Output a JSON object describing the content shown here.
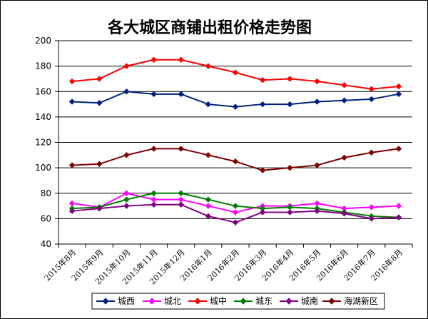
{
  "chart_data": {
    "type": "line",
    "title": "各大城区商铺出租价格走势图",
    "xlabel": "",
    "ylabel": "",
    "ylim": [
      40,
      200
    ],
    "yticks": [
      40,
      60,
      80,
      100,
      120,
      140,
      160,
      180,
      200
    ],
    "grid": true,
    "legend_position": "bottom",
    "categories": [
      "2015年8月",
      "2015年9月",
      "2015年10月",
      "2015年11月",
      "2015年12月",
      "2016年1月",
      "2016年2月",
      "2016年3月",
      "2016年4月",
      "2016年5月",
      "2016年6月",
      "2016年7月",
      "2016年8月"
    ],
    "series": [
      {
        "name": "城西",
        "color": "#001f7f",
        "marker": "diamond",
        "values": [
          152,
          151,
          160,
          158,
          158,
          150,
          148,
          150,
          150,
          152,
          153,
          154,
          158
        ]
      },
      {
        "name": "城北",
        "color": "#ff00ff",
        "marker": "diamond",
        "values": [
          72,
          69,
          80,
          75,
          75,
          70,
          65,
          70,
          70,
          72,
          68,
          69,
          70
        ]
      },
      {
        "name": "城中",
        "color": "#ff0000",
        "marker": "diamond",
        "values": [
          168,
          170,
          180,
          185,
          185,
          180,
          175,
          169,
          170,
          168,
          165,
          162,
          164
        ]
      },
      {
        "name": "城东",
        "color": "#008000",
        "marker": "diamond",
        "values": [
          68,
          69,
          75,
          80,
          80,
          75,
          70,
          68,
          69,
          68,
          65,
          62,
          61
        ]
      },
      {
        "name": "城南",
        "color": "#800080",
        "marker": "diamond",
        "values": [
          66,
          68,
          70,
          71,
          71,
          62,
          57,
          65,
          65,
          66,
          64,
          60,
          61
        ]
      },
      {
        "name": "海湖新区",
        "color": "#800000",
        "marker": "diamond",
        "values": [
          102,
          103,
          110,
          115,
          115,
          110,
          105,
          98,
          100,
          102,
          108,
          112,
          115
        ]
      }
    ]
  }
}
